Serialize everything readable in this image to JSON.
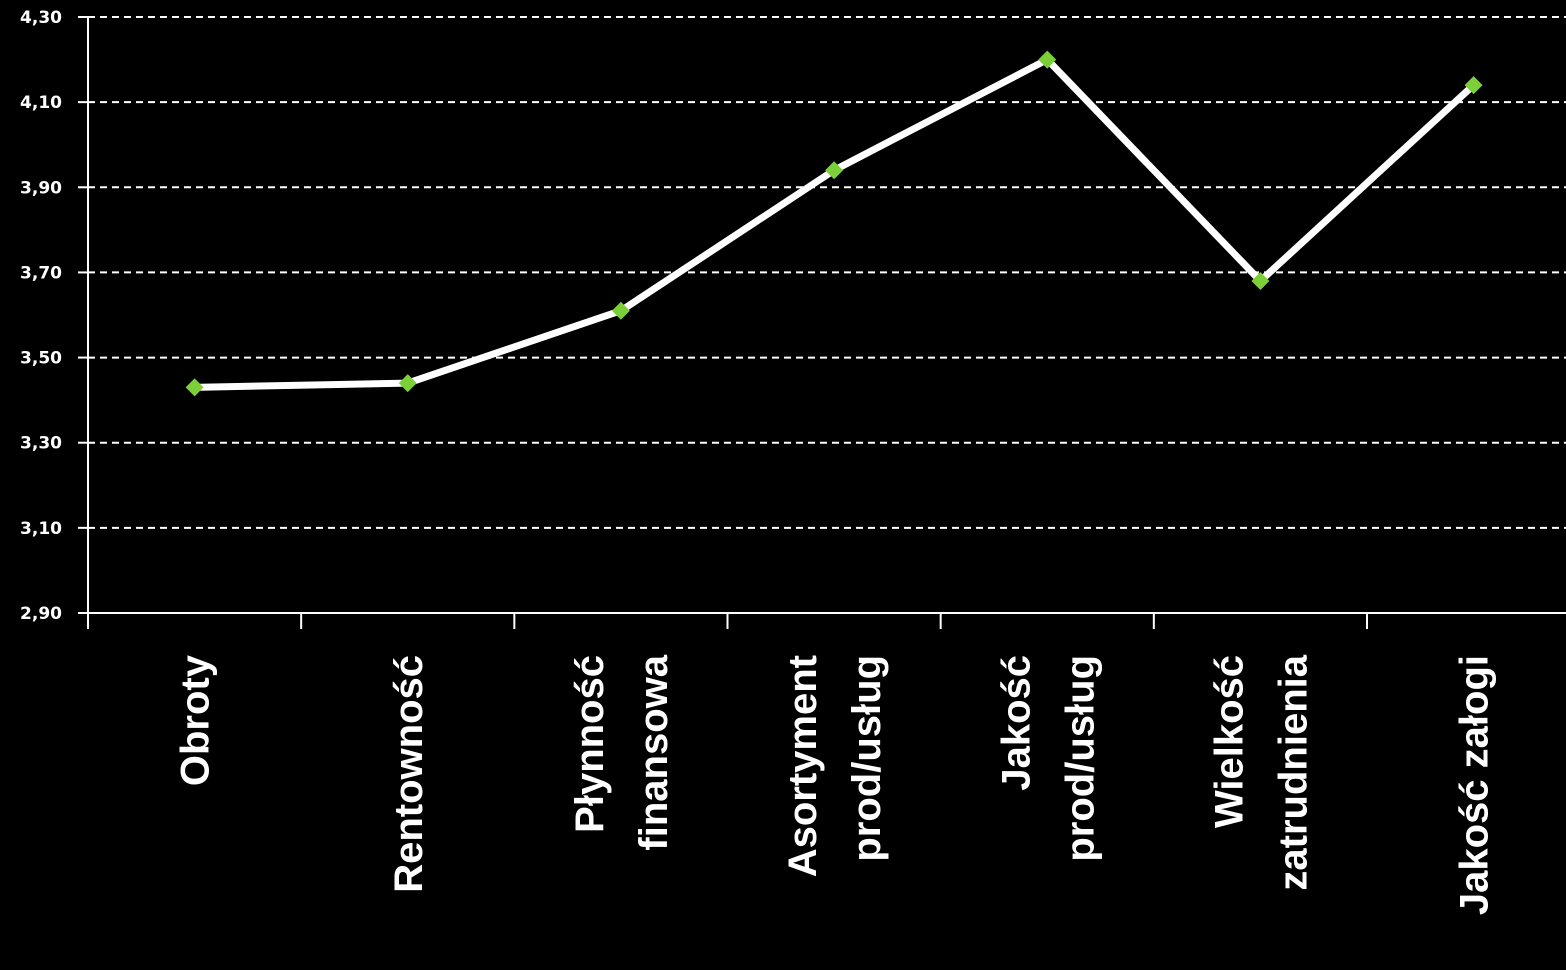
{
  "chart_data": {
    "type": "line",
    "categories": [
      [
        "Obroty"
      ],
      [
        "Rentowność"
      ],
      [
        "Płynność",
        "finansowa"
      ],
      [
        "Asortyment",
        "prod/usług"
      ],
      [
        "Jakość",
        "prod/usług"
      ],
      [
        "Wielkość",
        "zatrudnienia"
      ],
      [
        "Jakość załogi"
      ]
    ],
    "values": [
      3.43,
      3.44,
      3.61,
      3.94,
      4.2,
      3.68,
      4.14
    ],
    "ylim": [
      2.9,
      4.3
    ],
    "yticks": [
      2.9,
      3.1,
      3.3,
      3.5,
      3.7,
      3.9,
      4.1,
      4.3
    ],
    "ytick_labels": [
      "2,90",
      "3,10",
      "3,30",
      "3,50",
      "3,70",
      "3,90",
      "4,10",
      "4,30"
    ],
    "grid": "horizontal-dashed",
    "colors": {
      "background": "#000000",
      "line": "#ffffff",
      "marker": "#7dcf3a",
      "text": "#ffffff",
      "grid": "#ffffff"
    }
  }
}
